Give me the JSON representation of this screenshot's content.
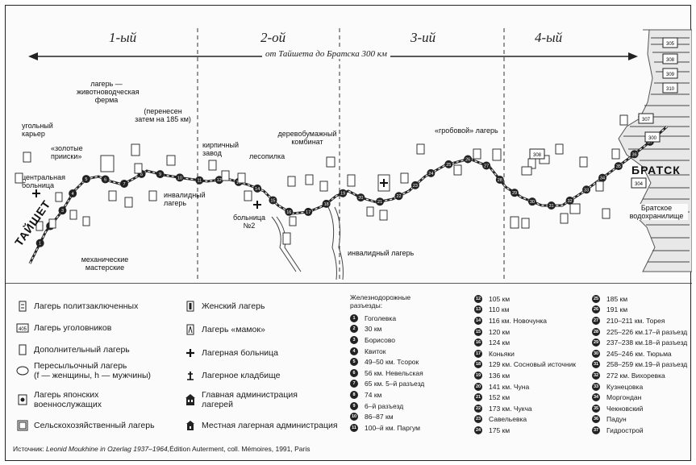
{
  "zones": [
    "1-ый",
    "2-ой",
    "3-ий",
    "4-ый"
  ],
  "span_label": "от Тайшета до Братска 300 км",
  "cities": {
    "taishet": "ТАЙШЕТ",
    "bratsk": "БРАТСК"
  },
  "map_labels": {
    "coal_quarry": "угольный карьер",
    "golden_mines": "«золотые прииски»",
    "central_hospital": "центральная больница",
    "livestock_camp": "лагерь — животноводческая ферма",
    "moved_185": "(перенесен затем на 185 км)",
    "invalid_camp_1": "инвалидный лагерь",
    "mech_workshops": "механические мастерские",
    "brick_plant": "кирпичный завод",
    "sawmill": "лесопилка",
    "paper_plant": "деревобумажный комбинат",
    "hospital_2": "больница №2",
    "coffin_camp": "«гробовой» лагерь",
    "invalid_camp_2": "инвалидный лагерь",
    "reservoir": "Братское водохранилище"
  },
  "camp_codes": [
    "305",
    "308",
    "309",
    "310",
    "307",
    "300",
    "304",
    "308"
  ],
  "legend": [
    {
      "icon": "political-camp-icon",
      "label": "Лагерь политзаключенных"
    },
    {
      "icon": "criminal-camp-icon",
      "label": "Лагерь уголовников",
      "code": "405"
    },
    {
      "icon": "additional-camp-icon",
      "label": "Дополнительный лагерь"
    },
    {
      "icon": "transit-camp-icon",
      "label": "Пересыльочный лагерь",
      "label2": "(f — женщины, h — мужчины)"
    },
    {
      "icon": "japanese-camp-icon",
      "label": "Лагерь японских",
      "label2": "военнослужащих"
    },
    {
      "icon": "agricultural-camp-icon",
      "label": "Сельскохозяйственный лагерь"
    },
    {
      "icon": "women-camp-icon",
      "label": "Женский лагерь"
    },
    {
      "icon": "mothers-camp-icon",
      "label": "Лагерь «мамок»"
    },
    {
      "icon": "hospital-cross-icon",
      "label": "Лагерная больница"
    },
    {
      "icon": "cemetery-icon",
      "label": "Лагерное кладбище"
    },
    {
      "icon": "main-admin-icon",
      "label": "Главная администрация",
      "label2": "лагерей"
    },
    {
      "icon": "local-admin-icon",
      "label": "Местная лагерная администрация"
    }
  ],
  "stations_heading": [
    "Железнодорожные",
    "разъезды:"
  ],
  "stations": [
    {
      "n": "1",
      "label": "Гоголевка"
    },
    {
      "n": "2",
      "label": "30 км"
    },
    {
      "n": "3",
      "label": "Борисово"
    },
    {
      "n": "4",
      "label": "Квиток"
    },
    {
      "n": "5",
      "label": "49–50 км. Тсорок"
    },
    {
      "n": "6",
      "label": "56 км. Невельская"
    },
    {
      "n": "7",
      "label": "65 км. 5–й разъезд"
    },
    {
      "n": "8",
      "label": "74 км"
    },
    {
      "n": "9",
      "label": "6–й разъезд"
    },
    {
      "n": "10",
      "label": "86–87 км"
    },
    {
      "n": "11",
      "label": "100–й км. Паргум"
    },
    {
      "n": "12",
      "label": "105 км"
    },
    {
      "n": "13",
      "label": "110 км"
    },
    {
      "n": "14",
      "label": "116 км. Новочунка"
    },
    {
      "n": "15",
      "label": "120 км"
    },
    {
      "n": "16",
      "label": "124 км"
    },
    {
      "n": "17",
      "label": "Коньяки"
    },
    {
      "n": "18",
      "label": "129 км. Сосновый источник"
    },
    {
      "n": "19",
      "label": "136 км"
    },
    {
      "n": "20",
      "label": "141 км. Чуна"
    },
    {
      "n": "21",
      "label": "152 км"
    },
    {
      "n": "22",
      "label": "173 км. Чукча"
    },
    {
      "n": "23",
      "label": "Савельевка"
    },
    {
      "n": "24",
      "label": "175 км"
    },
    {
      "n": "25",
      "label": "185 км"
    },
    {
      "n": "26",
      "label": "191 км"
    },
    {
      "n": "27",
      "label": "210–211 км. Торея"
    },
    {
      "n": "28",
      "label": "225–226 км.17–й разъезд"
    },
    {
      "n": "29",
      "label": "237–238 км.18–й разъезд"
    },
    {
      "n": "30",
      "label": "245–246 км. Тюрьма"
    },
    {
      "n": "31",
      "label": "258–259 км.19–й разъезд"
    },
    {
      "n": "32",
      "label": "272 км. Вихоревка"
    },
    {
      "n": "33",
      "label": "Кузнецовка"
    },
    {
      "n": "34",
      "label": "Моргондан"
    },
    {
      "n": "35",
      "label": "Чекновский"
    },
    {
      "n": "36",
      "label": "Падун"
    },
    {
      "n": "37",
      "label": "Гидрострой"
    }
  ],
  "source": {
    "prefix": "Источник: ",
    "italic": "Leonid Moukhine in Ozerlag 1937–1964,",
    "rest": "Édition Auterment, coll. Mémoires, 1991, Paris"
  }
}
